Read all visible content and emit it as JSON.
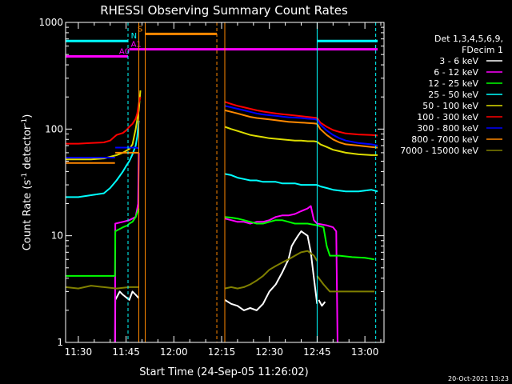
{
  "chart_data": {
    "type": "line",
    "title": "RHESSI Observing Summary Count Rates",
    "xlabel": "Start Time (24-Sep-05 11:26:02)",
    "ylabel_main": "Count Rate (s",
    "ylabel_sup1": "-1",
    "ylabel_mid": " detector",
    "ylabel_sup2": "-1",
    "ylabel_end": ")",
    "yscale": "log",
    "ylim": [
      1,
      1000
    ],
    "xlim_min": [
      686,
      786
    ],
    "x_ticks": [
      {
        "min": 690,
        "label": "11:30"
      },
      {
        "min": 705,
        "label": "11:45"
      },
      {
        "min": 720,
        "label": "12:00"
      },
      {
        "min": 735,
        "label": "12:15"
      },
      {
        "min": 750,
        "label": "12:30"
      },
      {
        "min": 765,
        "label": "12:45"
      },
      {
        "min": 780,
        "label": "13:00"
      }
    ],
    "y_ticks": [
      {
        "value": 1,
        "label": "1"
      },
      {
        "value": 10,
        "label": "10"
      },
      {
        "value": 100,
        "label": "100"
      },
      {
        "value": 1000,
        "label": "1000"
      }
    ],
    "legend": {
      "header1": "Det 1,3,4,5,6,9,",
      "header2": "FDecim 1",
      "placement": "right"
    },
    "series": [
      {
        "name": "3 - 6 keV",
        "color": "#ffffff",
        "segments": [
          {
            "x": [
              686,
              701.5,
              701.6,
              703,
              704,
              706,
              707,
              708,
              709
            ],
            "y": [
              0.6,
              0.6,
              2.5,
              3,
              2.8,
              2.5,
              3,
              2.8,
              2.6
            ]
          },
          {
            "x": [
              736,
              738,
              740,
              742,
              744,
              746,
              748,
              750,
              752,
              754,
              756,
              757,
              758,
              759,
              760,
              762,
              763,
              764,
              765
            ],
            "y": [
              2.5,
              2.3,
              2.2,
              2.0,
              2.1,
              2.0,
              2.3,
              3.0,
              3.5,
              4.5,
              6,
              8,
              9,
              10,
              11,
              10,
              7,
              4,
              2.3
            ]
          },
          {
            "x": [
              765.5,
              766.5,
              767.5
            ],
            "y": [
              2.5,
              2.2,
              2.4
            ]
          }
        ]
      },
      {
        "name": "6 - 12 keV",
        "color": "#ff00ff",
        "segments": [
          {
            "x": [
              686,
              701.5,
              701.6,
              704,
              706,
              707,
              708,
              708.8,
              709
            ],
            "y": [
              0.6,
              0.6,
              13,
              13.5,
              14,
              14.5,
              15,
              20,
              60
            ]
          },
          {
            "x": [
              736,
              738,
              740,
              742,
              744,
              746,
              748,
              750,
              752,
              754,
              756,
              758,
              760,
              762,
              763,
              764,
              765
            ],
            "y": [
              14.5,
              14,
              13.5,
              13.5,
              13,
              13.5,
              13.5,
              14,
              15,
              15.5,
              15.5,
              16,
              17,
              18,
              19,
              14,
              13
            ]
          },
          {
            "x": [
              765,
              768,
              770,
              771,
              771.5
            ],
            "y": [
              13,
              12.5,
              12,
              11,
              0.6
            ]
          }
        ]
      },
      {
        "name": "12 - 25 keV",
        "color": "#00ff00",
        "segments": [
          {
            "x": [
              686,
              695,
              698,
              701.5,
              701.6,
              704,
              705.5,
              706,
              707,
              708,
              709
            ],
            "y": [
              4.2,
              4.2,
              4.2,
              4.2,
              11,
              12,
              12.5,
              13,
              13.5,
              15,
              18
            ]
          },
          {
            "x": [
              736,
              738,
              740,
              742,
              744,
              746,
              748,
              750,
              752,
              754,
              756,
              758,
              760,
              762,
              765
            ],
            "y": [
              15,
              14.8,
              14.5,
              14,
              13.5,
              13,
              13,
              13.5,
              14,
              14,
              13.5,
              13,
              13,
              13,
              12.5
            ]
          },
          {
            "x": [
              765,
              767,
              768,
              769,
              772,
              776,
              780,
              783
            ],
            "y": [
              12.5,
              12,
              8,
              6.5,
              6.5,
              6.3,
              6.2,
              6.0
            ]
          }
        ]
      },
      {
        "name": "25 - 50 keV",
        "color": "#00ffff",
        "segments": [
          {
            "x": [
              686,
              690,
              694,
              698,
              700,
              702,
              704,
              705,
              706,
              707,
              708,
              708.5,
              709
            ],
            "y": [
              23,
              23,
              24,
              25,
              28,
              33,
              40,
              45,
              50,
              58,
              70,
              85,
              120
            ]
          },
          {
            "x": [
              736,
              738,
              740,
              742,
              744,
              746,
              748,
              750,
              752,
              754,
              756,
              758,
              760,
              762,
              764,
              765
            ],
            "y": [
              38,
              37,
              35,
              34,
              33,
              33,
              32,
              32,
              32,
              31,
              31,
              31,
              30,
              30,
              30,
              30
            ]
          },
          {
            "x": [
              765,
              766,
              768,
              770,
              774,
              778,
              782,
              784
            ],
            "y": [
              30,
              29,
              28,
              27,
              26,
              26,
              27,
              26
            ]
          }
        ]
      },
      {
        "name": "50 - 100 keV",
        "color": "#dddd00",
        "segments": [
          {
            "x": [
              686,
              690,
              694,
              698,
              700,
              702,
              704,
              706,
              707,
              708,
              709,
              709.5
            ],
            "y": [
              52,
              52,
              52,
              53,
              55,
              57,
              60,
              65,
              72,
              100,
              150,
              230
            ]
          },
          {
            "x": [
              736,
              738,
              740,
              742,
              744,
              746,
              748,
              750,
              752,
              754,
              756,
              758,
              760,
              762,
              764,
              765
            ],
            "y": [
              105,
              100,
              96,
              92,
              88,
              86,
              84,
              82,
              81,
              80,
              79,
              78,
              78,
              77,
              77,
              76
            ]
          },
          {
            "x": [
              765,
              766,
              768,
              770,
              772,
              774,
              778,
              782,
              784
            ],
            "y": [
              76,
              72,
              68,
              64,
              62,
              60,
              58,
              57,
              57
            ]
          }
        ]
      },
      {
        "name": "100 - 300 keV",
        "color": "#ff0000",
        "segments": [
          {
            "x": [
              686,
              690,
              694,
              698,
              700,
              701,
              702,
              704,
              705,
              706,
              707,
              708,
              708.5,
              709,
              709.5
            ],
            "y": [
              73,
              73,
              74,
              75,
              78,
              83,
              88,
              92,
              97,
              105,
              112,
              125,
              140,
              175,
              200
            ]
          },
          {
            "x": [
              736,
              738,
              740,
              742,
              744,
              746,
              748,
              750,
              752,
              754,
              756,
              758,
              760,
              762,
              764,
              765
            ],
            "y": [
              180,
              172,
              165,
              160,
              155,
              150,
              146,
              143,
              140,
              138,
              136,
              134,
              132,
              130,
              128,
              127
            ]
          },
          {
            "x": [
              765,
              766,
              768,
              770,
              772,
              774,
              778,
              782,
              784
            ],
            "y": [
              127,
              115,
              105,
              98,
              94,
              91,
              89,
              88,
              87
            ]
          }
        ]
      },
      {
        "name": "300 - 800 keV",
        "color": "#0000ff",
        "segments": [
          {
            "x": [
              686,
              690,
              694,
              698,
              701.5
            ],
            "y": [
              54,
              54,
              54,
              54,
              54
            ]
          },
          {
            "x": [
              701.6,
              704,
              706,
              708,
              709
            ],
            "y": [
              67,
              67,
              67,
              67,
              66
            ]
          },
          {
            "x": [
              736,
              738,
              740,
              742,
              744,
              746,
              748,
              750,
              752,
              754,
              756,
              758,
              760,
              762,
              764,
              765
            ],
            "y": [
              165,
              160,
              155,
              150,
              145,
              140,
              137,
              135,
              133,
              131,
              129,
              128,
              127,
              125,
              124,
              122
            ]
          },
          {
            "x": [
              765,
              766,
              768,
              770,
              772,
              774,
              778,
              782,
              784
            ],
            "y": [
              122,
              110,
              97,
              88,
              82,
              78,
              74,
              72,
              70
            ]
          }
        ]
      },
      {
        "name": "800 - 7000 keV",
        "color": "#ff8800",
        "segments": [
          {
            "x": [
              686,
              690,
              694,
              698,
              701.5
            ],
            "y": [
              48,
              48,
              48,
              48,
              48
            ]
          },
          {
            "x": [
              701.6,
              704,
              706,
              708,
              709
            ],
            "y": [
              60,
              60,
              60,
              60,
              60
            ]
          },
          {
            "x": [
              736,
              738,
              740,
              742,
              744,
              746,
              748,
              750,
              752,
              754,
              756,
              758,
              760,
              762,
              764,
              765
            ],
            "y": [
              150,
              145,
              140,
              135,
              130,
              127,
              125,
              123,
              121,
              119,
              117,
              116,
              115,
              114,
              113,
              112
            ]
          },
          {
            "x": [
              765,
              766,
              768,
              770,
              772,
              774,
              778,
              782,
              784
            ],
            "y": [
              112,
              100,
              88,
              80,
              75,
              72,
              70,
              68,
              67
            ]
          }
        ]
      },
      {
        "name": "7000 - 15000 keV",
        "color": "#808000",
        "segments": [
          {
            "x": [
              686,
              690,
              694,
              698,
              702,
              706,
              709
            ],
            "y": [
              3.3,
              3.2,
              3.4,
              3.3,
              3.2,
              3.3,
              3.3
            ]
          },
          {
            "x": [
              736,
              738,
              740,
              742,
              744,
              746,
              748,
              750,
              752,
              754,
              756,
              758,
              760,
              762,
              764,
              765
            ],
            "y": [
              3.2,
              3.3,
              3.2,
              3.3,
              3.5,
              3.8,
              4.2,
              4.8,
              5.2,
              5.6,
              6.0,
              6.5,
              7.0,
              7.2,
              6.5,
              5.8
            ]
          },
          {
            "x": [
              765,
              767,
              769,
              772,
              776,
              780,
              783
            ],
            "y": [
              4.2,
              3.5,
              3.0,
              3.0,
              3.0,
              3.0,
              3.0
            ]
          }
        ]
      }
    ],
    "markers": [
      {
        "kind": "vline",
        "x": 705.6,
        "color": "#00ffff",
        "dashed": true
      },
      {
        "kind": "vline",
        "x": 709.0,
        "color": "#ff8800",
        "dashed": false
      },
      {
        "kind": "vline",
        "x": 711.0,
        "color": "#ff8800",
        "dashed": false
      },
      {
        "kind": "vline",
        "x": 733.5,
        "color": "#ff8800",
        "dashed": true
      },
      {
        "kind": "vline",
        "x": 736.0,
        "color": "#ff8800",
        "dashed": false
      },
      {
        "kind": "vline",
        "x": 765.0,
        "color": "#00ffff",
        "dashed": false
      },
      {
        "kind": "vline",
        "x": 783.4,
        "color": "#00ffff",
        "dashed": true
      }
    ],
    "flags": [
      {
        "label": "N",
        "color": "#00ffff",
        "value": 670,
        "ranges": [
          [
            686,
            705.6
          ],
          [
            765,
            784
          ]
        ],
        "label_at": 706.5
      },
      {
        "label": "A0",
        "color": "#ff00ff",
        "value": 480,
        "ranges": [
          [
            686,
            705.6
          ]
        ],
        "label_at": 702.8
      },
      {
        "label": "A1",
        "color": "#ff00ff",
        "value": 560,
        "ranges": [
          [
            706,
            784
          ]
        ],
        "label_at": 706.5
      },
      {
        "label": "S",
        "color": "#ff8800",
        "value": 780,
        "ranges": [
          [
            711,
            733.5
          ]
        ],
        "label_at": 708.6
      }
    ],
    "footer_timestamp": "20-Oct-2021 13:23"
  }
}
